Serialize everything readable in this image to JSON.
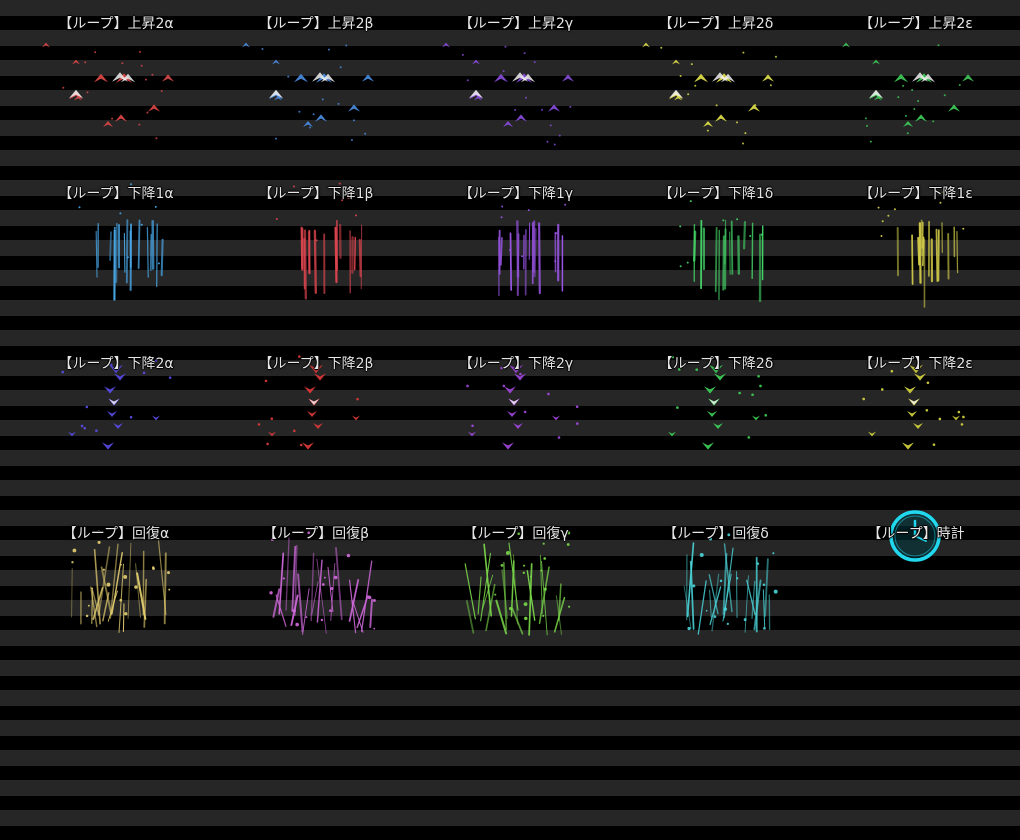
{
  "effects": [
    {
      "label": "【ループ】上昇2α",
      "kind": "rise",
      "color": "#e04848"
    },
    {
      "label": "【ループ】上昇2β",
      "kind": "rise",
      "color": "#4a8fe6"
    },
    {
      "label": "【ループ】上昇2γ",
      "kind": "rise",
      "color": "#8a4ce0"
    },
    {
      "label": "【ループ】上昇2δ",
      "kind": "rise",
      "color": "#e6e64a"
    },
    {
      "label": "【ループ】上昇2ε",
      "kind": "rise",
      "color": "#3fcf5a"
    },
    {
      "label": "【ループ】下降1α",
      "kind": "fall1",
      "color": "#4aa8e8"
    },
    {
      "label": "【ループ】下降1β",
      "kind": "fall1",
      "color": "#e04650"
    },
    {
      "label": "【ループ】下降1γ",
      "kind": "fall1",
      "color": "#9a55e6"
    },
    {
      "label": "【ループ】下降1δ",
      "kind": "fall1",
      "color": "#46d86a"
    },
    {
      "label": "【ループ】下降1ε",
      "kind": "fall1",
      "color": "#d8d24a"
    },
    {
      "label": "【ループ】下降2α",
      "kind": "fall2",
      "color": "#5a4ce8"
    },
    {
      "label": "【ループ】下降2β",
      "kind": "fall2",
      "color": "#e03a3a"
    },
    {
      "label": "【ループ】下降2γ",
      "kind": "fall2",
      "color": "#a448e0"
    },
    {
      "label": "【ループ】下降2δ",
      "kind": "fall2",
      "color": "#3ed65a"
    },
    {
      "label": "【ループ】下降2ε",
      "kind": "fall2",
      "color": "#d8d840"
    },
    {
      "label": "【ループ】回復α",
      "kind": "heal",
      "color": "#e6d070"
    },
    {
      "label": "【ループ】回復β",
      "kind": "heal",
      "color": "#d46ae0"
    },
    {
      "label": "【ループ】回復γ",
      "kind": "heal",
      "color": "#7ad84a"
    },
    {
      "label": "【ループ】回復δ",
      "kind": "heal",
      "color": "#4ad4d8"
    },
    {
      "label": "【ループ】時計",
      "kind": "clock",
      "color": "#22d8ee"
    }
  ]
}
